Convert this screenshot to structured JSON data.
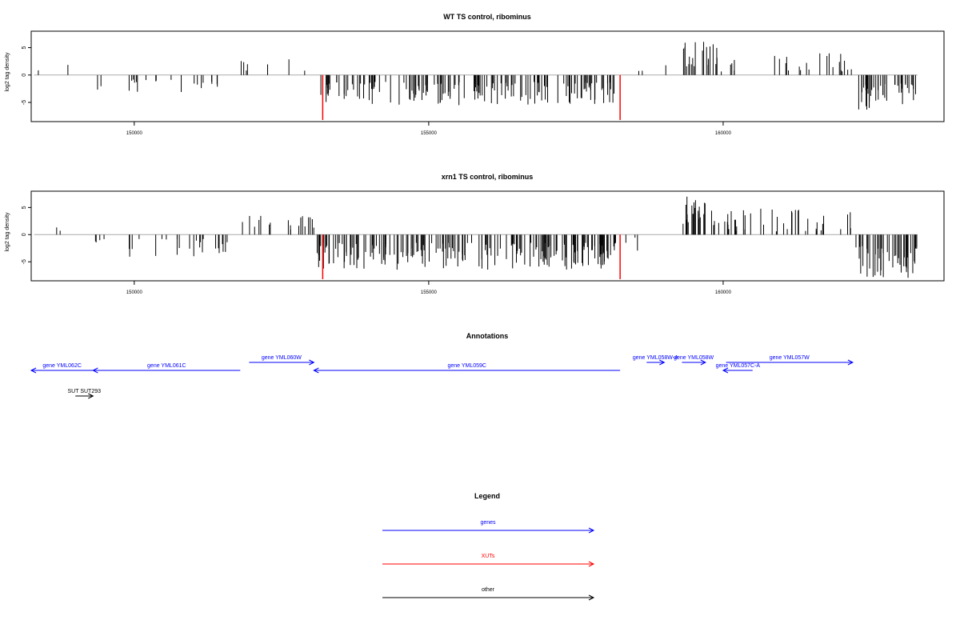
{
  "colors": {
    "gene": "#0000ff",
    "xut": "#ff0000",
    "other": "#000000",
    "bar": "#000000",
    "zero_line": "#aaaaaa"
  },
  "chart_data": [
    {
      "type": "bar",
      "title": "WT TS control, ribominus",
      "ylabel": "log2 tag density",
      "xlim": [
        148250,
        163750
      ],
      "ylim": [
        -8.5,
        8
      ],
      "xticks": [
        150000,
        155000,
        160000
      ],
      "yticks": [
        -5,
        0,
        5
      ],
      "xut_markers": {
        "x": [
          153200,
          158250
        ],
        "y": [
          -8.2,
          -8.2
        ]
      },
      "regions": [
        {
          "from": 148300,
          "to": 148900,
          "density": 0.35,
          "sign": 1,
          "min": 0.5,
          "max": 2.0,
          "seed": 11
        },
        {
          "from": 149300,
          "to": 151600,
          "density": 0.9,
          "sign": -1,
          "min": 0.8,
          "max": 3.5,
          "seed": 12
        },
        {
          "from": 151800,
          "to": 152900,
          "density": 0.6,
          "sign": 1,
          "min": 0.8,
          "max": 3.2,
          "seed": 13
        },
        {
          "from": 153100,
          "to": 158200,
          "density": 3.2,
          "sign": -1,
          "min": 1.2,
          "max": 5.5,
          "seed": 14
        },
        {
          "from": 158300,
          "to": 159300,
          "density": 0.25,
          "sign": 1,
          "min": 0.5,
          "max": 2.2,
          "seed": 15
        },
        {
          "from": 159300,
          "to": 159900,
          "density": 3.5,
          "sign": 1,
          "min": 1.5,
          "max": 6.5,
          "seed": 16
        },
        {
          "from": 159900,
          "to": 162200,
          "density": 1.1,
          "sign": 1,
          "min": 0.6,
          "max": 4.0,
          "seed": 17
        },
        {
          "from": 162250,
          "to": 163300,
          "density": 4.0,
          "sign": -1,
          "min": 1.5,
          "max": 6.5,
          "seed": 18
        }
      ]
    },
    {
      "type": "bar",
      "title": "xrn1 TS control, ribominus",
      "ylabel": "log2 tag density",
      "xlim": [
        148250,
        163750
      ],
      "ylim": [
        -8.5,
        8
      ],
      "xticks": [
        150000,
        155000,
        160000
      ],
      "yticks": [
        -5,
        0,
        5
      ],
      "xut_markers": {
        "x": [
          153200,
          158250
        ],
        "y": [
          -8.2,
          -8.2
        ]
      },
      "regions": [
        {
          "from": 148300,
          "to": 148900,
          "density": 0.35,
          "sign": 1,
          "min": 0.5,
          "max": 2.5,
          "seed": 21
        },
        {
          "from": 149300,
          "to": 151600,
          "density": 1.2,
          "sign": -1,
          "min": 0.8,
          "max": 4.2,
          "seed": 22
        },
        {
          "from": 151800,
          "to": 153100,
          "density": 1.4,
          "sign": 1,
          "min": 0.8,
          "max": 3.8,
          "seed": 23
        },
        {
          "from": 153100,
          "to": 158200,
          "density": 4.0,
          "sign": -1,
          "min": 1.5,
          "max": 6.5,
          "seed": 24
        },
        {
          "from": 158300,
          "to": 159300,
          "density": 0.25,
          "sign": -1,
          "min": 0.5,
          "max": 3.0,
          "seed": 25
        },
        {
          "from": 159300,
          "to": 159900,
          "density": 4.0,
          "sign": 1,
          "min": 1.5,
          "max": 7.0,
          "seed": 26
        },
        {
          "from": 159900,
          "to": 162200,
          "density": 1.8,
          "sign": 1,
          "min": 0.6,
          "max": 5.0,
          "seed": 27
        },
        {
          "from": 162250,
          "to": 163300,
          "density": 4.5,
          "sign": -1,
          "min": 2.0,
          "max": 8.0,
          "seed": 28
        }
      ]
    }
  ],
  "annotations": {
    "title": "Annotations",
    "features": [
      {
        "label": "gene YML062C",
        "type": "gene",
        "start": 148250,
        "end": 149300,
        "strand": "-",
        "row": 1
      },
      {
        "label": "gene YML061C",
        "type": "gene",
        "start": 149300,
        "end": 151800,
        "strand": "-",
        "row": 1
      },
      {
        "label": "gene YML060W",
        "type": "gene",
        "start": 151950,
        "end": 153050,
        "strand": "+",
        "row": 0
      },
      {
        "label": "gene YML059C",
        "type": "gene",
        "start": 153050,
        "end": 158250,
        "strand": "-",
        "row": 1
      },
      {
        "label": "gene YML058W-A",
        "type": "gene",
        "start": 158700,
        "end": 159000,
        "strand": "+",
        "row": 0
      },
      {
        "label": "gene YML058W",
        "type": "gene",
        "start": 159300,
        "end": 159700,
        "strand": "+",
        "row": 0
      },
      {
        "label": "gene YML057C-A",
        "type": "gene",
        "start": 160000,
        "end": 160500,
        "strand": "-",
        "row": 1
      },
      {
        "label": "gene YML057W",
        "type": "gene",
        "start": 160050,
        "end": 162200,
        "strand": "+",
        "row": 0
      },
      {
        "label": "SUT SUT293",
        "type": "other",
        "start": 149000,
        "end": 149300,
        "strand": "+",
        "row": 2
      }
    ]
  },
  "legend": {
    "title": "Legend",
    "items": [
      {
        "label": "genes",
        "type": "gene"
      },
      {
        "label": "XUTs",
        "type": "xut"
      },
      {
        "label": "other",
        "type": "other"
      }
    ]
  }
}
